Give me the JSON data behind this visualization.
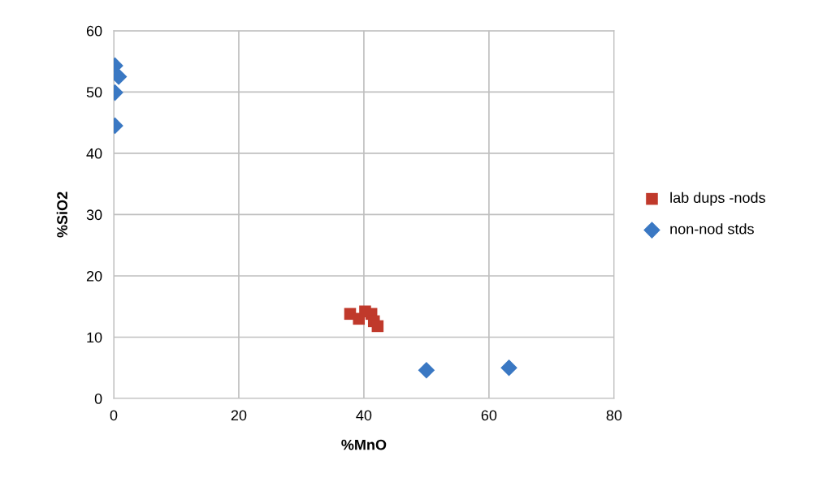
{
  "chart_data": {
    "type": "scatter",
    "xlabel": "%MnO",
    "ylabel": "%SiO2",
    "xlim": [
      0,
      80
    ],
    "xticks": [
      0,
      20,
      40,
      60,
      80
    ],
    "ylim": [
      0,
      60
    ],
    "yticks": [
      0,
      10,
      20,
      30,
      40,
      50,
      60
    ],
    "grid": true,
    "legend": "right",
    "series": [
      {
        "name": "lab dups -nods",
        "color": "#c0392b",
        "marker": "square",
        "x": [
          37.8,
          39.2,
          40.2,
          41.2,
          41.6,
          42.2
        ],
        "values": [
          13.8,
          13.0,
          14.2,
          13.8,
          12.6,
          11.8
        ]
      },
      {
        "name": "non-nod stds",
        "color": "#3a78c3",
        "marker": "diamond",
        "x": [
          0.2,
          0.8,
          0.2,
          0.2,
          50.0,
          63.2
        ],
        "values": [
          54.3,
          52.5,
          49.9,
          44.5,
          4.6,
          5.0
        ]
      }
    ]
  }
}
